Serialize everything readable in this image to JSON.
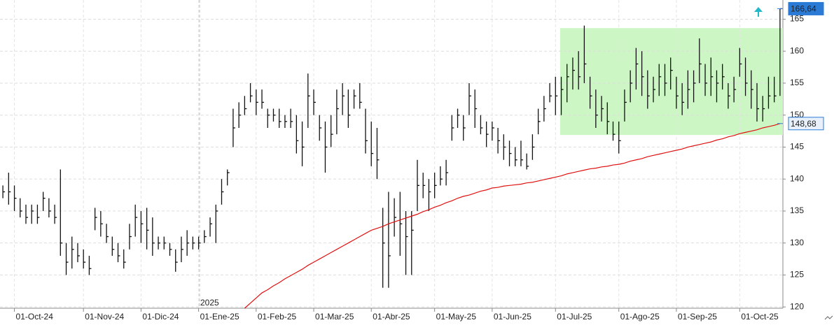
{
  "chart_data": {
    "type": "ohlc",
    "categories": [
      null,
      null,
      "01-Oct-24",
      null,
      null,
      null,
      null,
      null,
      null,
      null,
      null,
      null,
      null,
      null,
      "01-Nov-24",
      null,
      null,
      null,
      null,
      null,
      null,
      null,
      null,
      null,
      "01-Dic-24",
      null,
      null,
      null,
      null,
      null,
      null,
      null,
      null,
      null,
      "01-Ene-25",
      null,
      null,
      null,
      null,
      null,
      null,
      null,
      null,
      null,
      "01-Feb-25",
      null,
      null,
      null,
      null,
      null,
      null,
      null,
      null,
      null,
      "01-Mar-25",
      null,
      null,
      null,
      null,
      null,
      null,
      null,
      null,
      null,
      "01-Abr-25",
      null,
      null,
      null,
      null,
      null,
      null,
      null,
      null,
      null,
      null,
      "01-May-25",
      null,
      null,
      null,
      null,
      null,
      null,
      null,
      null,
      null,
      "01-Jun-25",
      null,
      null,
      null,
      null,
      null,
      null,
      null,
      null,
      null,
      null,
      "01-Jul-25",
      null,
      null,
      null,
      null,
      null,
      null,
      null,
      null,
      null,
      null,
      "01-Ago-25",
      null,
      null,
      null,
      null,
      null,
      null,
      null,
      null,
      null,
      "01-Sep-25",
      null,
      null,
      null,
      null,
      null,
      null,
      null,
      null,
      null,
      null,
      "01-Oct-25",
      null,
      null,
      null,
      null,
      null,
      null,
      null
    ],
    "high": [
      139,
      141,
      139,
      137,
      136,
      136,
      136,
      138,
      137,
      136,
      141.5,
      130,
      131,
      130,
      129,
      128,
      135.5,
      135,
      133,
      131,
      130,
      129,
      133,
      136,
      135,
      135.5,
      134,
      131,
      131,
      130,
      129,
      131,
      132,
      131,
      131,
      132,
      134,
      136,
      140,
      141.5,
      151,
      152,
      153,
      155,
      154,
      154,
      151,
      151,
      151,
      150,
      151,
      150,
      149,
      156.5,
      154,
      150,
      149,
      150,
      154,
      155,
      154,
      154,
      155,
      151,
      149,
      148,
      135.5,
      138,
      137,
      138,
      135,
      135,
      143,
      141,
      140,
      141,
      142,
      143,
      150,
      151,
      150,
      155,
      154,
      150,
      149,
      149,
      148,
      147,
      146,
      145,
      146,
      144,
      147,
      151,
      153,
      155,
      156,
      156,
      158,
      159,
      160,
      164,
      156,
      154,
      153,
      152,
      149,
      149,
      154,
      157,
      160.5,
      160,
      157,
      156,
      158,
      158,
      159,
      156,
      155,
      157,
      157,
      162,
      158,
      159,
      157,
      158,
      155,
      156,
      160.5,
      159,
      157,
      155,
      153,
      156,
      156,
      166.64
    ],
    "low": [
      137,
      136,
      135,
      134,
      133,
      133,
      133,
      135,
      134,
      133,
      128,
      125,
      126,
      127,
      126,
      125,
      132,
      131,
      130,
      128,
      127,
      126,
      129,
      131,
      130,
      129,
      128,
      129,
      129,
      128,
      125.5,
      127,
      128,
      129,
      129,
      130,
      131,
      130,
      136,
      139,
      145,
      148,
      150,
      152,
      150,
      151,
      148,
      149,
      148,
      148,
      148,
      144,
      142,
      148,
      150,
      146,
      141,
      145,
      147,
      150,
      148,
      151,
      151,
      144,
      142,
      140,
      123,
      123,
      131,
      128,
      125,
      125,
      135,
      137,
      135,
      137,
      139,
      139,
      146,
      148,
      146,
      150,
      148,
      147,
      145,
      146,
      144,
      143,
      142,
      142,
      142,
      141.5,
      143,
      147,
      149,
      152,
      150,
      150,
      152,
      154,
      154,
      155,
      151,
      148,
      149,
      147,
      146,
      144,
      149,
      152,
      154,
      153,
      151,
      152,
      153,
      153,
      154,
      151,
      150,
      151,
      152,
      155,
      153,
      153,
      152,
      154,
      151,
      152,
      156,
      153,
      151,
      149,
      149,
      151,
      152,
      153
    ],
    "close": [
      138,
      138,
      137,
      135,
      134,
      135,
      134,
      137,
      135,
      134,
      130,
      127,
      129,
      128,
      127,
      126,
      134,
      133,
      131,
      129,
      128,
      127,
      131,
      134,
      133,
      132,
      130,
      130,
      130,
      129,
      127,
      129,
      130,
      130,
      130,
      131,
      133,
      135,
      138,
      141,
      148,
      150,
      151,
      153,
      152,
      152,
      150,
      150,
      149,
      149,
      149,
      146,
      145,
      153,
      152,
      148,
      145,
      147,
      151,
      153,
      150,
      153,
      152,
      146,
      144,
      143,
      130,
      128,
      134,
      133,
      131,
      132,
      139,
      139,
      138,
      139,
      140,
      141,
      148,
      150,
      148,
      153,
      151,
      148,
      147,
      148,
      146,
      145,
      144,
      143,
      143,
      142,
      145,
      149,
      151,
      153,
      153,
      154,
      156,
      157,
      156,
      158,
      153,
      150,
      151,
      149,
      147,
      146,
      152,
      155,
      158,
      156,
      153,
      154,
      156,
      155,
      157,
      153,
      152,
      154,
      155,
      158,
      155,
      156,
      155,
      156,
      153,
      154,
      158,
      155,
      154,
      151,
      151,
      153,
      153,
      166.64
    ],
    "bar_color": "#111111",
    "moving_average": {
      "color": "#e01010",
      "values": [
        null,
        null,
        null,
        null,
        null,
        null,
        null,
        null,
        null,
        null,
        null,
        null,
        null,
        null,
        null,
        null,
        null,
        null,
        null,
        null,
        null,
        null,
        null,
        null,
        null,
        null,
        null,
        null,
        null,
        null,
        null,
        null,
        null,
        null,
        null,
        null,
        null,
        null,
        null,
        null,
        null,
        null,
        119.8,
        120.6,
        121.4,
        122.2,
        122.7,
        123.3,
        123.8,
        124.4,
        124.9,
        125.4,
        125.9,
        126.5,
        127.0,
        127.5,
        128.0,
        128.5,
        129.0,
        129.5,
        130.0,
        130.5,
        131.0,
        131.5,
        132.0,
        132.3,
        132.6,
        133.0,
        133.3,
        133.6,
        133.9,
        134.2,
        134.5,
        134.9,
        135.2,
        135.6,
        135.9,
        136.3,
        136.6,
        137.0,
        137.3,
        137.5,
        137.8,
        138.1,
        138.3,
        138.6,
        138.7,
        138.9,
        139.0,
        139.1,
        139.2,
        139.4,
        139.5,
        139.7,
        139.9,
        140.1,
        140.3,
        140.5,
        140.8,
        141.0,
        141.2,
        141.4,
        141.6,
        141.7,
        141.9,
        142.0,
        142.2,
        142.3,
        142.5,
        142.8,
        143.0,
        143.2,
        143.5,
        143.7,
        143.9,
        144.1,
        144.3,
        144.5,
        144.7,
        145.0,
        145.2,
        145.4,
        145.6,
        145.8,
        146.1,
        146.3,
        146.6,
        146.8,
        147.1,
        147.3,
        147.5,
        147.7,
        148.0,
        148.2,
        148.4,
        148.68
      ]
    },
    "highlight": {
      "x": [
        96.8,
        135.5
      ],
      "y": [
        146.9,
        163.6
      ],
      "color": "#ccf7c4"
    },
    "price_labels": [
      {
        "value": 166.64,
        "label": "166,64",
        "color": "#2b7bd6",
        "text_color": "#ffffff"
      },
      {
        "value": 148.68,
        "label": "148,68",
        "color": "#e8f1fb",
        "text_color": "#222222"
      }
    ],
    "year_label": "2025",
    "ylim": [
      119.8,
      168
    ],
    "yticks": [
      120,
      125,
      130,
      135,
      140,
      145,
      150,
      155,
      160,
      165
    ],
    "grid": true
  }
}
